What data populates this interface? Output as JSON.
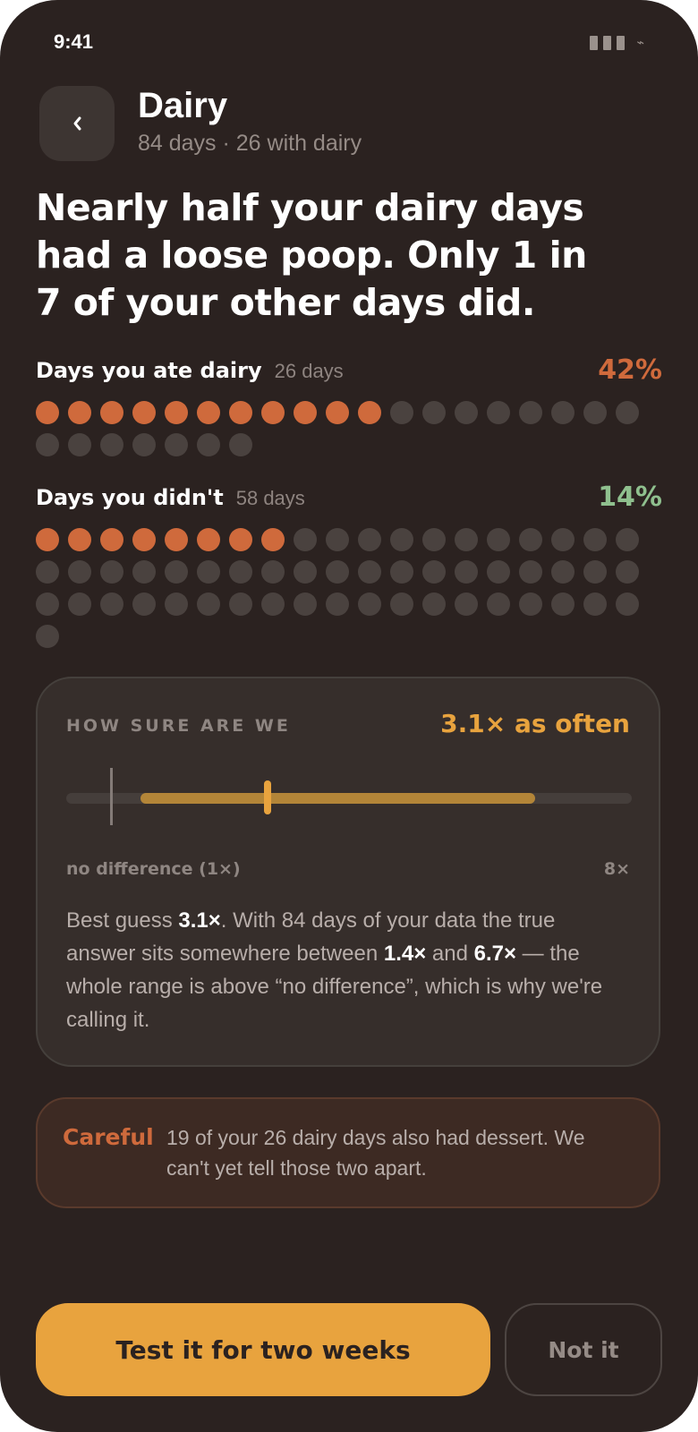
{
  "status": {
    "time": "9:41"
  },
  "header": {
    "title": "Dairy",
    "subtitle": "84 days · 26 with dairy",
    "back_icon": "chevron-left-icon"
  },
  "headline": "Nearly half your dairy days had a loose poop. Only 1 in 7 of your other days did.",
  "groups": [
    {
      "label": "Days you ate dairy",
      "count": "26 days",
      "percent": "42%",
      "total": 26,
      "hits": 11,
      "color": "#cf6a3c"
    },
    {
      "label": "Days you didn't",
      "count": "58 days",
      "percent": "14%",
      "total": 58,
      "hits": 8,
      "color": "#8fc08e"
    }
  ],
  "confidence": {
    "label": "HOW SURE ARE WE",
    "effect": "3.1× as often",
    "axis_min_label": "no difference (1×)",
    "axis_max_label": "8×",
    "axis_min": 0.4,
    "axis_max": 8,
    "baseline": 1,
    "estimate": 3.1,
    "low": 1.4,
    "high": 6.7,
    "body_prefix": "Best guess ",
    "body_estimate": "3.1×",
    "body_mid1": ". With 84 days of your data the true answer sits somewhere between ",
    "body_low": "1.4×",
    "body_mid2": " and ",
    "body_high": "6.7×",
    "body_suffix": " — the whole range is above “no difference”, which is why we're calling it."
  },
  "warning": {
    "title": "Careful",
    "text": "19 of your 26 dairy days also had dessert. We can't yet tell those two apart."
  },
  "actions": {
    "primary": "Test it for two weeks",
    "secondary": "Not it"
  },
  "colors": {
    "accent": "#e8a33e",
    "hit": "#cf6a3c",
    "good": "#8fc08e",
    "background": "#2b2220"
  }
}
